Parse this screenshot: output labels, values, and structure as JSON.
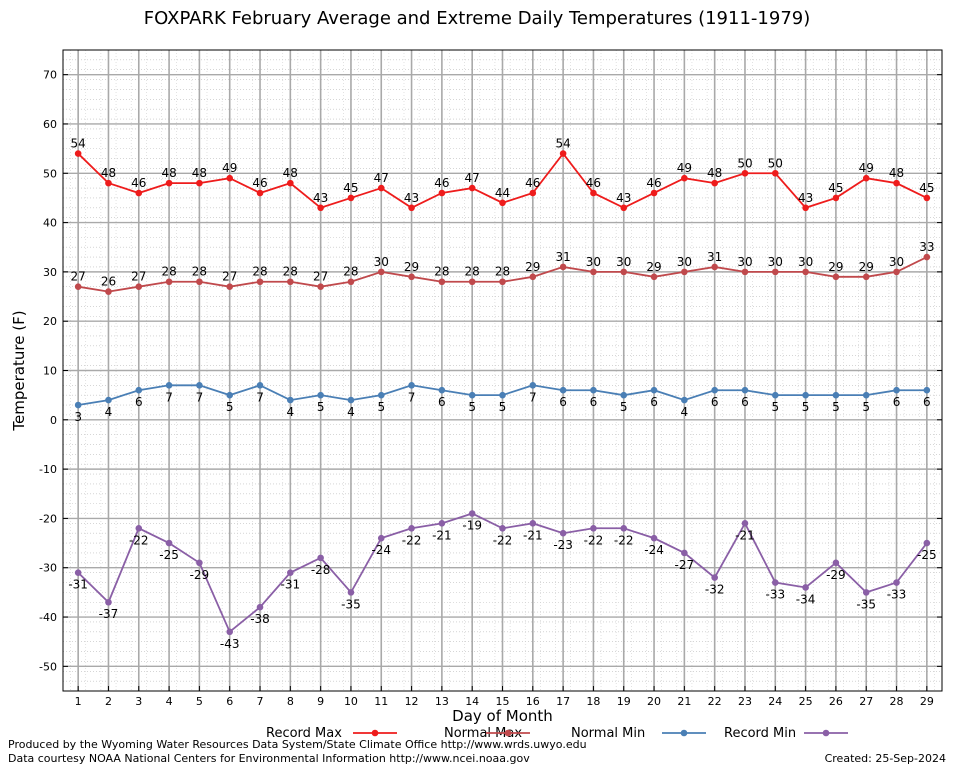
{
  "chart_data": {
    "type": "line",
    "title": "FOXPARK February Average and Extreme Daily Temperatures (1911-1979)",
    "xlabel": "Day of Month",
    "ylabel": "Temperature (F)",
    "x": [
      1,
      2,
      3,
      4,
      5,
      6,
      7,
      8,
      9,
      10,
      11,
      12,
      13,
      14,
      15,
      16,
      17,
      18,
      19,
      20,
      21,
      22,
      23,
      24,
      25,
      26,
      27,
      28,
      29
    ],
    "xlim": [
      0.5,
      29.5
    ],
    "ylim": [
      -55,
      75
    ],
    "yticks": [
      -50,
      -40,
      -30,
      -20,
      -10,
      0,
      10,
      20,
      30,
      40,
      50,
      60,
      70
    ],
    "grid": true,
    "legend_position": "bottom",
    "series": [
      {
        "name": "Record Max",
        "color": "#ee1c1c",
        "values": [
          54,
          48,
          46,
          48,
          48,
          49,
          46,
          48,
          43,
          45,
          47,
          43,
          46,
          47,
          44,
          46,
          54,
          46,
          43,
          46,
          49,
          48,
          50,
          50,
          43,
          45,
          49,
          48,
          45
        ]
      },
      {
        "name": "Normal Max",
        "color": "#c0494c",
        "values": [
          27,
          26,
          27,
          28,
          28,
          27,
          28,
          28,
          27,
          28,
          30,
          29,
          28,
          28,
          28,
          29,
          31,
          30,
          30,
          29,
          30,
          31,
          30,
          30,
          30,
          29,
          29,
          30,
          33
        ]
      },
      {
        "name": "Normal Min",
        "color": "#4a7fb5",
        "values": [
          3,
          4,
          6,
          7,
          7,
          5,
          7,
          4,
          5,
          4,
          5,
          7,
          6,
          5,
          5,
          7,
          6,
          6,
          5,
          6,
          4,
          6,
          6,
          5,
          5,
          5,
          5,
          6,
          6
        ]
      },
      {
        "name": "Record Min",
        "color": "#8a5fa6",
        "values": [
          -31,
          -37,
          -22,
          -25,
          -29,
          -43,
          -38,
          -31,
          -28,
          -35,
          -24,
          -22,
          -21,
          -19,
          -22,
          -21,
          -23,
          -22,
          -22,
          -24,
          -27,
          -32,
          -21,
          -33,
          -34,
          -29,
          -35,
          -33,
          -25
        ]
      }
    ]
  },
  "footer": {
    "produced_by": "Produced by the Wyoming Water Resources Data System/State Climate Office http://www.wrds.uwyo.edu",
    "data_courtesy": "Data courtesy NOAA National Centers for Environmental Information http://www.ncei.noaa.gov",
    "created": "Created:  25-Sep-2024"
  }
}
